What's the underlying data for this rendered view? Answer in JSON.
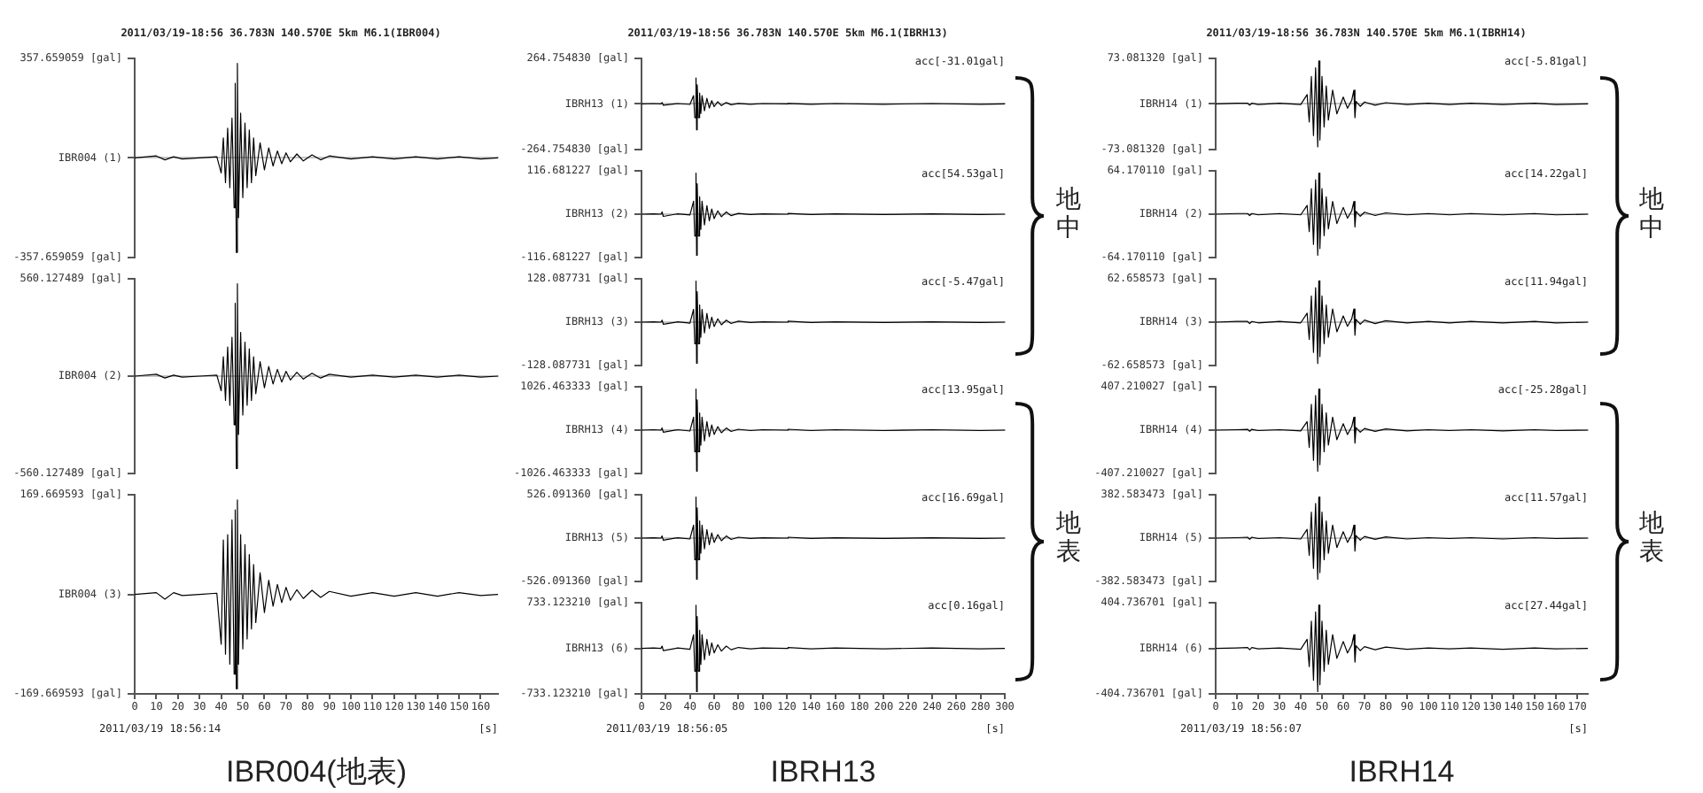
{
  "chart_data": [
    {
      "type": "line",
      "title": "2011/03/19-18:56 36.783N 140.570E 5km M6.1(IBR004)",
      "tick_labels": "y",
      "color": "#000000",
      "xlim": [
        0,
        168
      ],
      "ylim": [
        -357.659059,
        357.659059
      ],
      "yticks": [
        {
          "value": 357.659059,
          "label": "357.659059 [gal]"
        },
        {
          "value": 0,
          "label": "IBR004 (1)"
        },
        {
          "value": -357.659059,
          "label": "-357.659059 [gal]"
        }
      ],
      "x": [
        0,
        10,
        14,
        18,
        22,
        30,
        38,
        40,
        41,
        42,
        43,
        44,
        45,
        46,
        46.5,
        47,
        47.5,
        48,
        49,
        50,
        51,
        52,
        53,
        54,
        55,
        56,
        58,
        60,
        62,
        64,
        66,
        68,
        70,
        72,
        75,
        78,
        82,
        86,
        90,
        100,
        110,
        120,
        130,
        140,
        150,
        160,
        168
      ],
      "values": [
        0,
        7,
        -7,
        4,
        -4,
        0,
        4,
        -54,
        72,
        -89,
        107,
        -107,
        143,
        -179,
        268,
        -340,
        340,
        -215,
        161,
        -143,
        125,
        -107,
        100,
        -89,
        72,
        -64,
        54,
        -43,
        36,
        -29,
        25,
        -21,
        18,
        -14,
        14,
        -11,
        11,
        -7,
        7,
        -4,
        4,
        -4,
        4,
        -4,
        4,
        -4,
        0
      ]
    },
    {
      "type": "line",
      "tick_labels": "y",
      "color": "#000000",
      "xlim": [
        0,
        168
      ],
      "ylim": [
        -560.127489,
        560.127489
      ],
      "yticks": [
        {
          "value": 560.127489,
          "label": "560.127489 [gal]"
        },
        {
          "value": 0,
          "label": "IBR004 (2)"
        },
        {
          "value": -560.127489,
          "label": "-560.127489 [gal]"
        }
      ],
      "x": [
        0,
        10,
        14,
        18,
        22,
        30,
        38,
        40,
        41,
        42,
        43,
        44,
        45,
        46,
        46.5,
        47,
        47.5,
        48,
        49,
        50,
        51,
        52,
        53,
        54,
        55,
        56,
        58,
        60,
        62,
        64,
        66,
        68,
        70,
        72,
        75,
        78,
        82,
        86,
        90,
        100,
        110,
        120,
        130,
        140,
        150,
        160,
        168
      ],
      "values": [
        0,
        11,
        -11,
        6,
        -6,
        0,
        6,
        -84,
        112,
        -140,
        168,
        -168,
        224,
        -280,
        420,
        -532,
        532,
        -336,
        252,
        -224,
        196,
        -168,
        157,
        -140,
        112,
        -101,
        84,
        -67,
        56,
        -45,
        39,
        -34,
        28,
        -22,
        22,
        -17,
        17,
        -11,
        11,
        -6,
        6,
        -6,
        6,
        -6,
        6,
        -6,
        0
      ]
    },
    {
      "type": "line",
      "title": "IBR004(地表)",
      "xlabel": "[s]",
      "annotations": [
        "2011/03/19 18:56:14"
      ],
      "color": "#000000",
      "xlim": [
        0,
        168
      ],
      "xticks": [
        0,
        10,
        20,
        30,
        40,
        50,
        60,
        70,
        80,
        90,
        100,
        110,
        120,
        130,
        140,
        150,
        160
      ],
      "ylim": [
        -169.669593,
        169.669593
      ],
      "yticks": [
        {
          "value": 169.669593,
          "label": "169.669593 [gal]"
        },
        {
          "value": 0,
          "label": "IBR004 (3)"
        },
        {
          "value": -169.669593,
          "label": "-169.669593 [gal]"
        }
      ],
      "x": [
        0,
        10,
        14,
        18,
        22,
        30,
        38,
        40,
        41,
        42,
        43,
        44,
        45,
        46,
        46.5,
        47,
        47.5,
        48,
        49,
        50,
        51,
        52,
        53,
        54,
        55,
        56,
        58,
        60,
        62,
        64,
        66,
        68,
        70,
        72,
        75,
        78,
        82,
        86,
        90,
        100,
        110,
        120,
        130,
        140,
        150,
        160,
        168
      ],
      "values": [
        0,
        3,
        -8,
        3,
        -2,
        0,
        2,
        -85,
        93,
        -102,
        102,
        -119,
        127,
        -136,
        144,
        -161,
        161,
        -119,
        102,
        -93,
        85,
        -76,
        68,
        -59,
        51,
        -48,
        37,
        -31,
        24,
        -20,
        17,
        -14,
        12,
        -10,
        8,
        -7,
        7,
        -5,
        5,
        -3,
        3,
        -3,
        3,
        -3,
        3,
        -2,
        0
      ]
    },
    {
      "type": "line",
      "title": "2011/03/19-18:56 36.783N 140.570E 5km M6.1(IBRH13)",
      "annotations": [
        "acc[-31.01gal]"
      ],
      "tick_labels": "y",
      "color": "#000000",
      "xlim": [
        0,
        300
      ],
      "ylim": [
        -264.75483,
        264.75483
      ],
      "yticks": [
        {
          "value": 264.75483,
          "label": "264.754830 [gal]"
        },
        {
          "value": 0,
          "label": "IBRH13 (1)"
        },
        {
          "value": -264.75483,
          "label": "-264.754830 [gal]"
        }
      ],
      "x": [
        0,
        10,
        16,
        17,
        18,
        30,
        40,
        43,
        44,
        45,
        45.5,
        46,
        47,
        48,
        49,
        50,
        52,
        54,
        56,
        58,
        60,
        63,
        66,
        70,
        74,
        80,
        90,
        100,
        120,
        121,
        140,
        160,
        200,
        240,
        280,
        300
      ],
      "values": [
        0,
        2,
        0,
        8,
        -8,
        2,
        -3,
        48,
        -80,
        151,
        -151,
        111,
        -80,
        64,
        -56,
        48,
        -40,
        32,
        -24,
        19,
        -16,
        13,
        -10,
        8,
        -5,
        3,
        -2,
        2,
        0,
        3,
        -2,
        2,
        -2,
        2,
        -2,
        0
      ]
    },
    {
      "type": "line",
      "annotations": [
        "acc[54.53gal]",
        "地中"
      ],
      "tick_labels": "y",
      "color": "#000000",
      "xlim": [
        0,
        300
      ],
      "ylim": [
        -116.681227,
        116.681227
      ],
      "yticks": [
        {
          "value": 116.681227,
          "label": "116.681227 [gal]"
        },
        {
          "value": 0,
          "label": "IBRH13 (2)"
        },
        {
          "value": -116.681227,
          "label": "-116.681227 [gal]"
        }
      ],
      "x": [
        0,
        10,
        16,
        17,
        18,
        30,
        40,
        43,
        44,
        45,
        45.5,
        46,
        47,
        48,
        49,
        50,
        52,
        54,
        56,
        58,
        60,
        63,
        66,
        70,
        74,
        80,
        90,
        100,
        120,
        121,
        140,
        160,
        200,
        240,
        280,
        300
      ],
      "values": [
        0,
        1,
        0,
        6,
        -6,
        1,
        -2,
        35,
        -59,
        111,
        -111,
        82,
        -59,
        47,
        -41,
        35,
        -29,
        23,
        -18,
        14,
        -12,
        9,
        -7,
        6,
        -4,
        2,
        -1,
        1,
        0,
        2,
        -1,
        1,
        -1,
        1,
        -1,
        0
      ]
    },
    {
      "type": "line",
      "annotations": [
        "acc[-5.47gal]"
      ],
      "tick_labels": "y",
      "color": "#000000",
      "xlim": [
        0,
        300
      ],
      "ylim": [
        -128.087731,
        128.087731
      ],
      "yticks": [
        {
          "value": 128.087731,
          "label": "128.087731 [gal]"
        },
        {
          "value": 0,
          "label": "IBRH13 (3)"
        },
        {
          "value": -128.087731,
          "label": "-128.087731 [gal]"
        }
      ],
      "x": [
        0,
        10,
        16,
        17,
        18,
        30,
        40,
        43,
        44,
        45,
        45.5,
        46,
        47,
        48,
        49,
        50,
        52,
        54,
        56,
        58,
        60,
        63,
        66,
        70,
        74,
        80,
        90,
        100,
        120,
        121,
        140,
        160,
        200,
        240,
        280,
        300
      ],
      "values": [
        0,
        1,
        0,
        6,
        -6,
        1,
        -3,
        38,
        -64,
        122,
        -122,
        90,
        -64,
        51,
        -45,
        38,
        -32,
        26,
        -19,
        15,
        -13,
        10,
        -8,
        6,
        -4,
        3,
        -1,
        1,
        0,
        3,
        -1,
        1,
        -1,
        1,
        -1,
        0
      ]
    },
    {
      "type": "line",
      "annotations": [
        "acc[13.95gal]"
      ],
      "tick_labels": "y",
      "color": "#000000",
      "xlim": [
        0,
        300
      ],
      "ylim": [
        -1026.463333,
        1026.463333
      ],
      "yticks": [
        {
          "value": 1026.463333,
          "label": "1026.463333 [gal]"
        },
        {
          "value": 0,
          "label": "IBRH13 (4)"
        },
        {
          "value": -1026.463333,
          "label": "-1026.463333 [gal]"
        }
      ],
      "x": [
        0,
        10,
        16,
        17,
        18,
        30,
        40,
        43,
        44,
        45,
        45.5,
        46,
        47,
        48,
        49,
        50,
        52,
        54,
        56,
        58,
        60,
        63,
        66,
        70,
        74,
        80,
        90,
        100,
        120,
        121,
        140,
        160,
        200,
        240,
        280,
        300
      ],
      "values": [
        0,
        10,
        0,
        51,
        -51,
        10,
        -21,
        308,
        -513,
        975,
        -975,
        718,
        -513,
        410,
        -359,
        308,
        -257,
        205,
        -154,
        123,
        -103,
        82,
        -62,
        51,
        -31,
        21,
        -10,
        10,
        0,
        21,
        -10,
        10,
        -10,
        10,
        -10,
        0
      ]
    },
    {
      "type": "line",
      "annotations": [
        "acc[16.69gal]",
        "地表"
      ],
      "tick_labels": "y",
      "color": "#000000",
      "xlim": [
        0,
        300
      ],
      "ylim": [
        -526.09136,
        526.09136
      ],
      "yticks": [
        {
          "value": 526.09136,
          "label": "526.091360 [gal]"
        },
        {
          "value": 0,
          "label": "IBRH13 (5)"
        },
        {
          "value": -526.09136,
          "label": "-526.091360 [gal]"
        }
      ],
      "x": [
        0,
        10,
        16,
        17,
        18,
        30,
        40,
        43,
        44,
        45,
        45.5,
        46,
        47,
        48,
        49,
        50,
        52,
        54,
        56,
        58,
        60,
        63,
        66,
        70,
        74,
        80,
        90,
        100,
        120,
        121,
        140,
        160,
        200,
        240,
        280,
        300
      ],
      "values": [
        0,
        5,
        0,
        26,
        -26,
        5,
        -11,
        158,
        -263,
        500,
        -500,
        368,
        -263,
        210,
        -184,
        158,
        -132,
        105,
        -79,
        63,
        -53,
        42,
        -32,
        26,
        -16,
        11,
        -5,
        5,
        0,
        11,
        -5,
        5,
        -5,
        5,
        -5,
        0
      ]
    },
    {
      "type": "line",
      "title": "IBRH13",
      "xlabel": "[s]",
      "annotations": [
        "acc[0.16gal]",
        "2011/03/19 18:56:05"
      ],
      "color": "#000000",
      "xlim": [
        0,
        300
      ],
      "xticks": [
        0,
        20,
        40,
        60,
        80,
        100,
        120,
        140,
        160,
        180,
        200,
        220,
        240,
        260,
        280,
        300
      ],
      "ylim": [
        -733.12321,
        733.12321
      ],
      "yticks": [
        {
          "value": 733.12321,
          "label": "733.123210 [gal]"
        },
        {
          "value": 0,
          "label": "IBRH13 (6)"
        },
        {
          "value": -733.12321,
          "label": "-733.123210 [gal]"
        }
      ],
      "x": [
        0,
        10,
        16,
        17,
        18,
        30,
        40,
        43,
        44,
        45,
        45.5,
        46,
        47,
        48,
        49,
        50,
        52,
        54,
        56,
        58,
        60,
        63,
        66,
        70,
        74,
        80,
        90,
        100,
        120,
        121,
        140,
        160,
        200,
        240,
        280,
        300
      ],
      "values": [
        0,
        7,
        0,
        37,
        -37,
        7,
        -15,
        220,
        -367,
        696,
        -696,
        513,
        -367,
        293,
        -257,
        220,
        -183,
        147,
        -110,
        88,
        -73,
        59,
        -44,
        37,
        -22,
        15,
        -7,
        7,
        0,
        15,
        -7,
        7,
        -7,
        7,
        -7,
        0
      ]
    },
    {
      "type": "line",
      "title": "2011/03/19-18:56 36.783N 140.570E 5km M6.1(IBRH14)",
      "annotations": [
        "acc[-5.81gal]"
      ],
      "tick_labels": "y",
      "color": "#000000",
      "xlim": [
        0,
        175
      ],
      "ylim": [
        -73.08132,
        73.08132
      ],
      "yticks": [
        {
          "value": 73.08132,
          "label": "73.081320 [gal]"
        },
        {
          "value": 0,
          "label": "IBRH14 (1)"
        },
        {
          "value": -73.08132,
          "label": "-73.081320 [gal]"
        }
      ],
      "x": [
        0,
        10,
        15,
        16,
        17,
        20,
        30,
        40,
        43,
        44,
        45,
        46,
        47,
        48,
        48.5,
        49,
        50,
        51,
        52,
        53,
        55,
        57,
        60,
        62,
        64,
        65,
        65.5,
        66,
        68,
        70,
        75,
        80,
        90,
        100,
        110,
        120,
        135,
        150,
        160,
        175
      ],
      "values": [
        0,
        1,
        1,
        -2,
        1,
        -1,
        1,
        -1,
        15,
        -29,
        44,
        -51,
        58,
        -69,
        69,
        -58,
        44,
        -37,
        29,
        -26,
        22,
        -16,
        11,
        -7,
        6,
        22,
        -22,
        4,
        -4,
        3,
        -2,
        2,
        -1,
        1,
        -1,
        1,
        -1,
        1,
        -1,
        0
      ]
    },
    {
      "type": "line",
      "annotations": [
        "acc[14.22gal]",
        "地中"
      ],
      "tick_labels": "y",
      "color": "#000000",
      "xlim": [
        0,
        175
      ],
      "ylim": [
        -64.17011,
        64.17011
      ],
      "yticks": [
        {
          "value": 64.17011,
          "label": "64.170110 [gal]"
        },
        {
          "value": 0,
          "label": "IBRH14 (2)"
        },
        {
          "value": -64.17011,
          "label": "-64.170110 [gal]"
        }
      ],
      "x": [
        0,
        10,
        15,
        16,
        17,
        20,
        30,
        40,
        43,
        44,
        45,
        46,
        47,
        48,
        48.5,
        49,
        50,
        51,
        52,
        53,
        55,
        57,
        60,
        62,
        64,
        65,
        65.5,
        66,
        68,
        70,
        75,
        80,
        90,
        100,
        110,
        120,
        135,
        150,
        160,
        175
      ],
      "values": [
        0,
        1,
        1,
        -2,
        1,
        -1,
        1,
        -1,
        13,
        -26,
        38,
        -45,
        51,
        -61,
        61,
        -51,
        38,
        -32,
        26,
        -22,
        19,
        -14,
        10,
        -6,
        5,
        19,
        -19,
        4,
        -3,
        3,
        -2,
        2,
        -1,
        1,
        -1,
        1,
        -1,
        1,
        -1,
        0
      ]
    },
    {
      "type": "line",
      "annotations": [
        "acc[11.94gal]"
      ],
      "tick_labels": "y",
      "color": "#000000",
      "xlim": [
        0,
        175
      ],
      "ylim": [
        -62.658573,
        62.658573
      ],
      "yticks": [
        {
          "value": 62.658573,
          "label": "62.658573 [gal]"
        },
        {
          "value": 0,
          "label": "IBRH14 (3)"
        },
        {
          "value": -62.658573,
          "label": "-62.658573 [gal]"
        }
      ],
      "x": [
        0,
        10,
        15,
        16,
        17,
        20,
        30,
        40,
        43,
        44,
        45,
        46,
        47,
        48,
        48.5,
        49,
        50,
        51,
        52,
        53,
        55,
        57,
        60,
        62,
        64,
        65,
        65.5,
        66,
        68,
        70,
        75,
        80,
        90,
        100,
        110,
        120,
        135,
        150,
        160,
        175
      ],
      "values": [
        0,
        1,
        1,
        -2,
        1,
        -1,
        1,
        -1,
        13,
        -25,
        38,
        -44,
        50,
        -60,
        60,
        -50,
        38,
        -31,
        25,
        -22,
        19,
        -14,
        9,
        -6,
        5,
        19,
        -19,
        4,
        -3,
        3,
        -2,
        2,
        -1,
        1,
        -1,
        1,
        -1,
        1,
        -1,
        0
      ]
    },
    {
      "type": "line",
      "annotations": [
        "acc[-25.28gal]"
      ],
      "tick_labels": "y",
      "color": "#000000",
      "xlim": [
        0,
        175
      ],
      "ylim": [
        -407.210027,
        407.210027
      ],
      "yticks": [
        {
          "value": 407.210027,
          "label": "407.210027 [gal]"
        },
        {
          "value": 0,
          "label": "IBRH14 (4)"
        },
        {
          "value": -407.210027,
          "label": "-407.210027 [gal]"
        }
      ],
      "x": [
        0,
        10,
        15,
        16,
        17,
        20,
        30,
        40,
        43,
        44,
        45,
        46,
        47,
        48,
        48.5,
        49,
        50,
        51,
        52,
        53,
        55,
        57,
        60,
        62,
        64,
        65,
        65.5,
        66,
        68,
        70,
        75,
        80,
        90,
        100,
        110,
        120,
        135,
        150,
        160,
        175
      ],
      "values": [
        0,
        4,
        8,
        -12,
        8,
        -4,
        4,
        -8,
        81,
        -163,
        244,
        -285,
        326,
        -387,
        387,
        -326,
        244,
        -204,
        163,
        -142,
        122,
        -90,
        61,
        -41,
        33,
        122,
        -122,
        24,
        -20,
        16,
        -12,
        12,
        -8,
        4,
        -4,
        4,
        -8,
        4,
        -4,
        0
      ]
    },
    {
      "type": "line",
      "annotations": [
        "acc[11.57gal]",
        "地表"
      ],
      "tick_labels": "y",
      "color": "#000000",
      "xlim": [
        0,
        175
      ],
      "ylim": [
        -382.583473,
        382.583473
      ],
      "yticks": [
        {
          "value": 382.583473,
          "label": "382.583473 [gal]"
        },
        {
          "value": 0,
          "label": "IBRH14 (5)"
        },
        {
          "value": -382.583473,
          "label": "-382.583473 [gal]"
        }
      ],
      "x": [
        0,
        10,
        15,
        16,
        17,
        20,
        30,
        40,
        43,
        44,
        45,
        46,
        47,
        48,
        48.5,
        49,
        50,
        51,
        52,
        53,
        55,
        57,
        60,
        62,
        64,
        65,
        65.5,
        66,
        68,
        70,
        75,
        80,
        90,
        100,
        110,
        120,
        135,
        150,
        160,
        175
      ],
      "values": [
        0,
        4,
        8,
        -11,
        8,
        -4,
        4,
        -8,
        77,
        -153,
        230,
        -268,
        306,
        -364,
        364,
        -306,
        230,
        -192,
        153,
        -134,
        115,
        -84,
        57,
        -38,
        31,
        115,
        -115,
        23,
        -19,
        15,
        -11,
        11,
        -8,
        4,
        -4,
        4,
        -8,
        4,
        -4,
        0
      ]
    },
    {
      "type": "line",
      "title": "IBRH14",
      "xlabel": "[s]",
      "annotations": [
        "acc[27.44gal]",
        "2011/03/19 18:56:07"
      ],
      "color": "#000000",
      "xlim": [
        0,
        175
      ],
      "xticks": [
        0,
        10,
        20,
        30,
        40,
        50,
        60,
        70,
        80,
        90,
        100,
        110,
        120,
        130,
        140,
        150,
        160,
        170
      ],
      "ylim": [
        -404.736701,
        404.736701
      ],
      "yticks": [
        {
          "value": 404.736701,
          "label": "404.736701 [gal]"
        },
        {
          "value": 0,
          "label": "IBRH14 (6)"
        },
        {
          "value": -404.736701,
          "label": "-404.736701 [gal]"
        }
      ],
      "x": [
        0,
        10,
        15,
        16,
        17,
        20,
        30,
        40,
        43,
        44,
        45,
        46,
        47,
        48,
        48.5,
        49,
        50,
        51,
        52,
        53,
        55,
        57,
        60,
        62,
        64,
        65,
        65.5,
        66,
        68,
        70,
        75,
        80,
        90,
        100,
        110,
        120,
        135,
        150,
        160,
        175
      ],
      "values": [
        0,
        4,
        8,
        -12,
        8,
        -4,
        4,
        -8,
        81,
        -162,
        243,
        -284,
        324,
        -385,
        385,
        -324,
        243,
        -203,
        162,
        -142,
        122,
        -89,
        61,
        -41,
        32,
        122,
        -122,
        24,
        -20,
        16,
        -12,
        12,
        -8,
        4,
        -4,
        4,
        -8,
        4,
        -4,
        0
      ]
    }
  ]
}
